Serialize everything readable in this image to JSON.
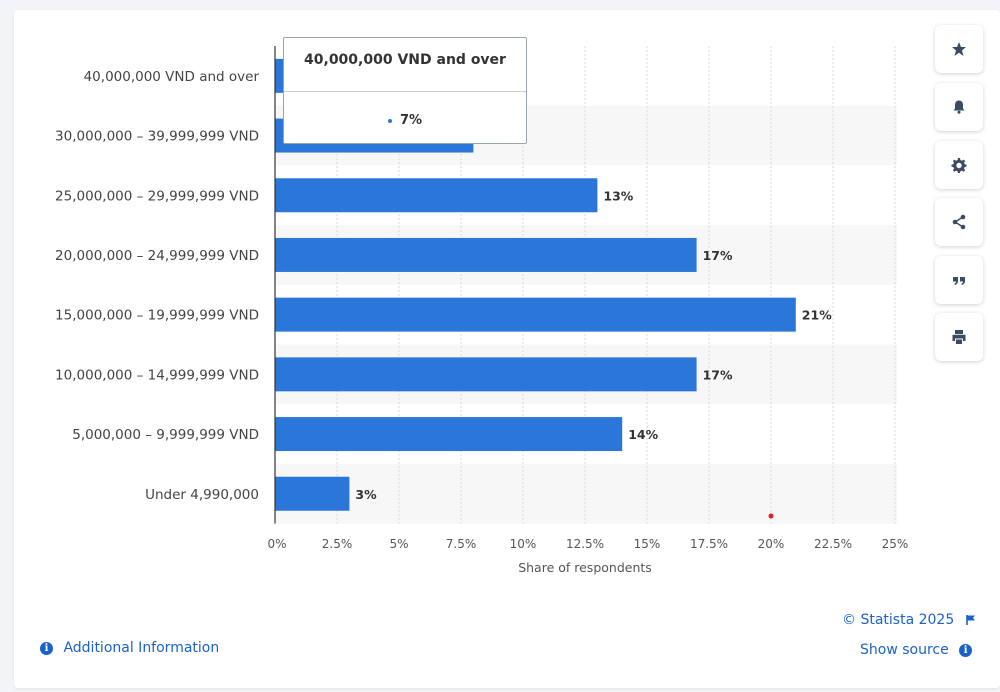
{
  "chart_data": {
    "type": "bar",
    "orientation": "horizontal",
    "categories": [
      "40,000,000 VND and over",
      "30,000,000 – 39,999,999 VND",
      "25,000,000 – 29,999,999 VND",
      "20,000,000 – 24,999,999 VND",
      "15,000,000 – 19,999,999 VND",
      "10,000,000 – 14,999,999 VND",
      "5,000,000 – 9,999,999 VND",
      "Under 4,990,000"
    ],
    "values": [
      7,
      8,
      13,
      17,
      21,
      17,
      14,
      3
    ],
    "value_labels": [
      "",
      "",
      "13%",
      "17%",
      "21%",
      "17%",
      "14%",
      "3%"
    ],
    "xlabel": "Share of respondents",
    "xlim": [
      0,
      25
    ],
    "ticks": [
      "0%",
      "2.5%",
      "5%",
      "7.5%",
      "10%",
      "12.5%",
      "15%",
      "17.5%",
      "20%",
      "22.5%",
      "25%"
    ],
    "tick_values": [
      0,
      2.5,
      5,
      7.5,
      10,
      12.5,
      15,
      17.5,
      20,
      22.5,
      25
    ],
    "grid": true,
    "bar_color": "#2b77d9"
  },
  "tooltip": {
    "title": "40,000,000 VND and over",
    "value": "7%"
  },
  "sidebar": {
    "buttons": [
      "star-icon",
      "bell-icon",
      "gear-icon",
      "share-icon",
      "quote-icon",
      "print-icon"
    ]
  },
  "footer": {
    "additional_info": "Additional Information",
    "copyright": "© Statista 2025",
    "show_source": "Show source"
  },
  "colors": {
    "accent": "#1a62c7",
    "bar": "#2b77d9",
    "stripe": "#f7f7f7"
  }
}
